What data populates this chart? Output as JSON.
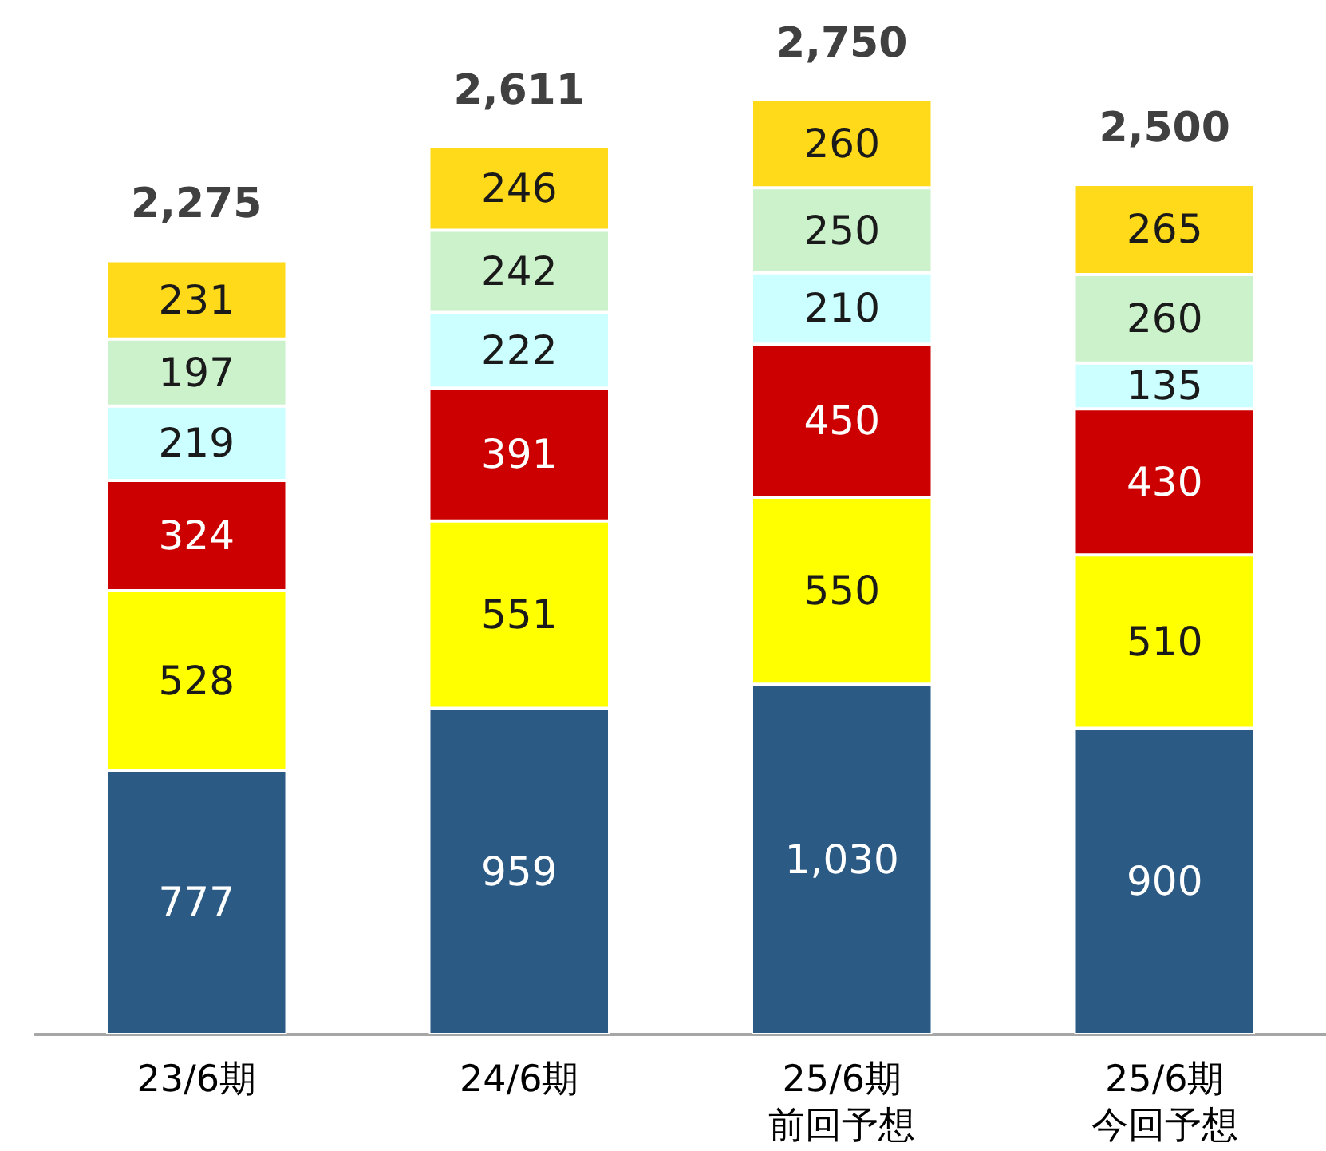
{
  "chart_data": {
    "type": "bar",
    "stacked": true,
    "tick_labels": "x",
    "categories": [
      "23/6期",
      "24/6期",
      "25/6期前回予想",
      "25/6期今回予想"
    ],
    "series": [
      {
        "color": "#2b5a85",
        "values": [
          777,
          959,
          1030,
          900
        ],
        "value_labels": [
          "777",
          "959",
          "1,030",
          "900"
        ]
      },
      {
        "color": "#ffff00",
        "values": [
          528,
          551,
          550,
          510
        ],
        "value_labels": [
          "528",
          "551",
          "550",
          "510"
        ]
      },
      {
        "color": "#cc0000",
        "values": [
          324,
          391,
          450,
          430
        ],
        "value_labels": [
          "324",
          "391",
          "450",
          "430"
        ]
      },
      {
        "color": "#ccffff",
        "values": [
          219,
          222,
          210,
          135
        ],
        "value_labels": [
          "219",
          "222",
          "210",
          "135"
        ]
      },
      {
        "color": "#ccf2cc",
        "values": [
          197,
          242,
          250,
          260
        ],
        "value_labels": [
          "197",
          "242",
          "250",
          "260"
        ]
      },
      {
        "color": "#ffda1a",
        "values": [
          231,
          246,
          260,
          265
        ],
        "value_labels": [
          "231",
          "246",
          "260",
          "265"
        ]
      }
    ],
    "totals": [
      "2,275",
      "2,611",
      "2,750",
      "2,500"
    ]
  }
}
